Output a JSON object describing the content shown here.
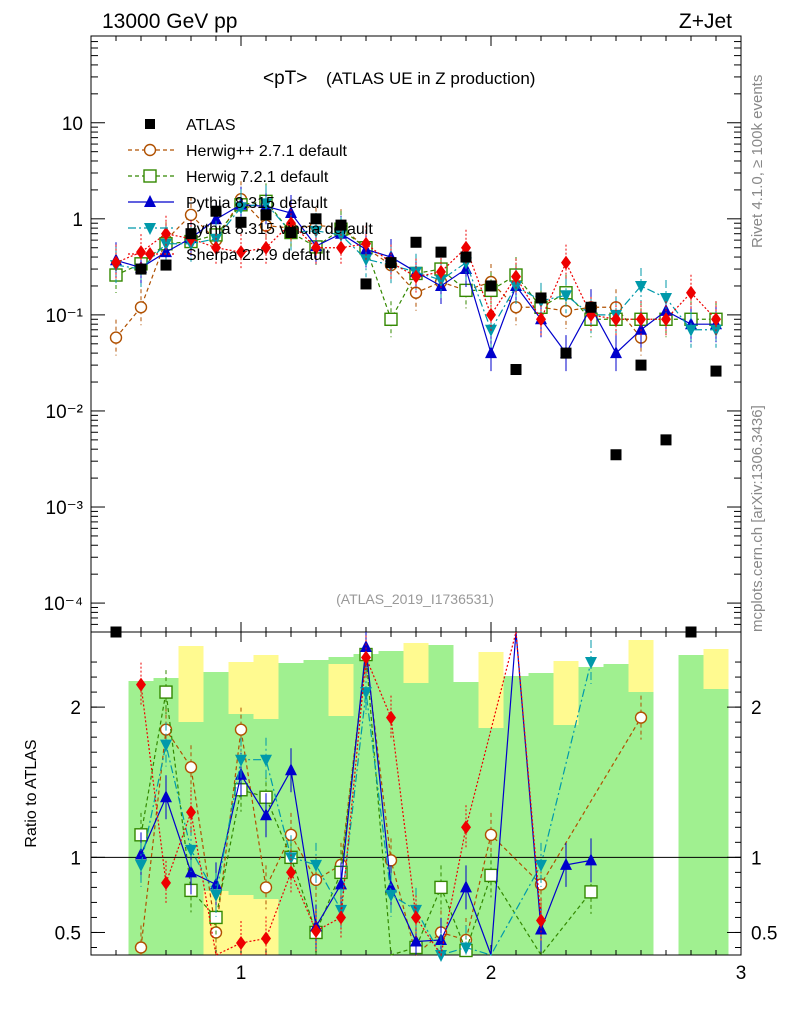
{
  "header": {
    "left": "13000 GeV pp",
    "right": "Z+Jet",
    "side_top": "Rivet 4.1.0, ≥ 100k events",
    "side_bottom": "mcplots.cern.ch [arXiv:1306.3436]",
    "watermark": "(ATLAS_2019_I1736531)"
  },
  "chart_data": {
    "type": "scatter",
    "title_main": "<pT>",
    "title_sub": "(ATLAS UE in Z production)",
    "xlim": [
      0.4,
      3.0
    ],
    "xticks": [
      "1",
      "2",
      "3"
    ],
    "ylim_main": [
      5e-05,
      80
    ],
    "yticks_main": [
      "10",
      "1",
      "10⁻¹",
      "10⁻²",
      "10⁻³",
      "10⁻⁴"
    ],
    "ylim_ratio": [
      0.35,
      2.5
    ],
    "yticks_ratio": [
      "2",
      "1",
      "0.5"
    ],
    "ylabel_ratio": "Ratio to ATLAS",
    "x": [
      0.5,
      0.6,
      0.7,
      0.8,
      0.9,
      1.0,
      1.1,
      1.2,
      1.3,
      1.4,
      1.5,
      1.6,
      1.7,
      1.8,
      1.9,
      2.0,
      2.1,
      2.2,
      2.3,
      2.4,
      2.5,
      2.6,
      2.7,
      2.8,
      2.9
    ],
    "data": {
      "name": "ATLAS",
      "values": [
        4e-05,
        0.3,
        0.33,
        0.7,
        1.2,
        0.92,
        1.1,
        0.72,
        1.0,
        0.86,
        0.21,
        0.35,
        0.57,
        0.45,
        0.4,
        0.2,
        0.027,
        0.15,
        0.04,
        0.12,
        0.0035,
        0.03,
        0.005,
        4e-05,
        0.026
      ]
    },
    "series": [
      {
        "name": "Herwig++ 2.7.1 default",
        "color": "#b05000",
        "marker": "circle",
        "dash": "4,3",
        "values": [
          0.058,
          0.12,
          0.6,
          1.1,
          0.6,
          1.6,
          0.85,
          0.8,
          0.85,
          0.82,
          0.5,
          0.33,
          0.17,
          0.22,
          0.18,
          0.22,
          0.12,
          0.12,
          0.11,
          0.12,
          0.12,
          0.058,
          null,
          null,
          null
        ],
        "ratio": [
          null,
          0.4,
          1.85,
          1.6,
          0.5,
          1.85,
          0.8,
          1.15,
          0.85,
          0.95,
          2.35,
          0.98,
          0.3,
          0.5,
          0.45,
          1.15,
          null,
          0.82,
          null,
          null,
          null,
          1.93,
          null,
          null,
          null
        ]
      },
      {
        "name": "Herwig 7.2.1 default",
        "color": "#338800",
        "marker": "square",
        "dash": "4,3",
        "values": [
          0.26,
          0.34,
          0.55,
          0.58,
          0.68,
          1.4,
          1.52,
          0.72,
          0.51,
          0.78,
          0.5,
          0.09,
          0.27,
          0.3,
          0.18,
          0.18,
          0.26,
          0.12,
          0.17,
          0.09,
          0.09,
          0.09,
          0.09,
          0.09,
          0.09
        ],
        "ratio": [
          null,
          1.15,
          2.1,
          0.78,
          0.6,
          1.45,
          1.4,
          1.0,
          0.5,
          0.9,
          2.35,
          0.25,
          0.4,
          0.8,
          0.38,
          0.88,
          null,
          0.2,
          null,
          0.77,
          null,
          null,
          null,
          null,
          null
        ]
      },
      {
        "name": "Pythia 8.315 default",
        "color": "#0000cc",
        "marker": "triangle",
        "dash": "",
        "values": [
          0.37,
          0.31,
          0.45,
          0.63,
          0.99,
          1.4,
          1.35,
          1.15,
          0.52,
          0.7,
          0.48,
          0.4,
          0.28,
          0.2,
          0.3,
          0.04,
          0.2,
          0.09,
          0.04,
          0.12,
          0.04,
          0.07,
          0.11,
          0.08,
          0.08
        ],
        "ratio": [
          null,
          1.02,
          1.4,
          0.9,
          0.82,
          1.55,
          1.28,
          1.58,
          0.54,
          0.82,
          2.4,
          0.8,
          0.44,
          0.45,
          0.8,
          0.2,
          8.0,
          0.52,
          0.95,
          0.98,
          null,
          null,
          null,
          null,
          null
        ]
      },
      {
        "name": "Pythia 8.315 vincia default",
        "color": "#0099aa",
        "marker": "invtriangle",
        "dash": "8,3,2,3",
        "values": [
          0.33,
          0.3,
          0.55,
          0.55,
          0.62,
          1.32,
          1.45,
          0.72,
          0.75,
          0.68,
          0.38,
          0.33,
          0.28,
          0.23,
          0.35,
          0.07,
          0.2,
          0.14,
          0.16,
          0.1,
          0.1,
          0.2,
          0.15,
          0.07,
          0.07
        ],
        "ratio": [
          null,
          0.95,
          1.75,
          1.05,
          0.75,
          1.65,
          1.65,
          1.0,
          0.95,
          0.65,
          2.1,
          0.75,
          0.65,
          0.35,
          0.4,
          0.3,
          null,
          0.95,
          null,
          2.3,
          null,
          null,
          null,
          null,
          null
        ]
      },
      {
        "name": "Sherpa 2.2.9 default",
        "color": "#ee0000",
        "marker": "diamond",
        "dash": "2,2",
        "values": [
          0.35,
          0.45,
          0.7,
          0.62,
          0.5,
          0.45,
          0.5,
          0.9,
          0.5,
          0.5,
          0.55,
          0.35,
          0.25,
          0.28,
          0.5,
          0.1,
          0.25,
          0.09,
          0.35,
          0.1,
          0.09,
          0.09,
          0.09,
          0.17,
          0.09
        ],
        "ratio": [
          null,
          2.15,
          0.83,
          1.3,
          0.33,
          0.43,
          0.46,
          0.9,
          0.51,
          0.6,
          2.33,
          1.93,
          0.6,
          0.32,
          1.2,
          null,
          8.0,
          0.58,
          null,
          null,
          null,
          null,
          null,
          null,
          null
        ]
      }
    ]
  }
}
